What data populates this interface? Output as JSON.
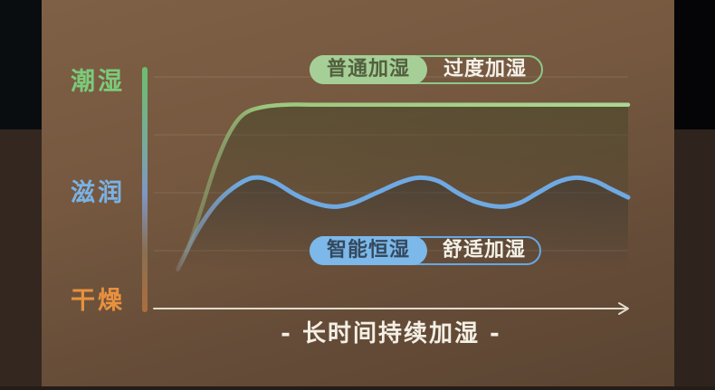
{
  "colors": {
    "bg-main-top": "#7e6046",
    "bg-main-bottom": "#5a4431",
    "edge-left-top": "#0a0d10",
    "edge-left-bottom": "#34271f",
    "edge-right-top": "#050507",
    "edge-right-bottom": "#2e231d",
    "bottom-strip": "#241c17",
    "green-line": "#a8d494",
    "blue-line": "#6fa9e2",
    "green-badge-bg": "#a6cf97",
    "green-badge-text": "#53603f",
    "green-badge-border": "#8dc989",
    "blue-badge-bg": "#7cb8e9",
    "blue-badge-text": "#35495e",
    "blue-badge-border": "#66a8e5",
    "badge-desc-text": "#f4f1e8",
    "label-wet": "#7ccb7a",
    "label-moist": "#79b2e6",
    "label-dry": "#e7913f",
    "axis-line": "#e2dacb",
    "x-label-text": "#f4efe5"
  },
  "y_axis": {
    "labels": [
      {
        "id": "wet",
        "text": "潮湿",
        "value": 100
      },
      {
        "id": "moist",
        "text": "滋润",
        "value": 50
      },
      {
        "id": "dry",
        "text": "干燥",
        "value": 0
      }
    ]
  },
  "x_axis": {
    "label": "- 长时间持续加湿 -"
  },
  "badges": {
    "normal": {
      "tag": "普通加湿",
      "desc": "过度加湿"
    },
    "smart": {
      "tag": "智能恒湿",
      "desc": "舒适加湿"
    }
  },
  "chart_data": {
    "type": "line",
    "title": "",
    "x_axis_label": "- 长时间持续加湿 -",
    "x_unit": "time, relative 0-100 (no numeric ticks shown)",
    "y_scale_semantics": {
      "干燥": 0,
      "滋润": 50,
      "潮湿": 100
    },
    "y_gridline_values": [
      25,
      50,
      75,
      100
    ],
    "ylim": [
      0,
      105
    ],
    "grid": true,
    "legend_position": "pill badges overlaid on chart",
    "series": [
      {
        "name": "普通加湿",
        "annotation": "过度加湿",
        "color": "#a8d494",
        "shape": "rises steeply then flat plateau just below 潮湿",
        "points": [
          [
            5,
            17
          ],
          [
            7,
            25
          ],
          [
            10,
            43
          ],
          [
            13,
            62
          ],
          [
            16,
            76
          ],
          [
            19,
            84
          ],
          [
            23,
            87
          ],
          [
            28,
            88
          ],
          [
            35,
            88
          ],
          [
            50,
            88
          ],
          [
            65,
            88
          ],
          [
            82,
            88
          ],
          [
            100,
            88
          ]
        ]
      },
      {
        "name": "智能恒湿",
        "annotation": "舒适加湿",
        "color": "#6fa9e2",
        "shape": "rises then oscillates gently around 滋润",
        "points": [
          [
            5,
            17
          ],
          [
            9,
            33
          ],
          [
            13,
            45
          ],
          [
            17,
            52.5
          ],
          [
            21,
            56.5
          ],
          [
            25,
            55
          ],
          [
            30,
            49
          ],
          [
            34,
            45.5
          ],
          [
            38,
            44
          ],
          [
            42,
            45.5
          ],
          [
            47,
            50
          ],
          [
            52,
            54.5
          ],
          [
            56,
            56.5
          ],
          [
            60,
            55
          ],
          [
            64,
            50
          ],
          [
            68,
            46
          ],
          [
            73,
            44
          ],
          [
            77,
            45.5
          ],
          [
            81,
            50
          ],
          [
            85,
            54.5
          ],
          [
            89,
            56.5
          ],
          [
            93,
            55
          ],
          [
            96,
            52
          ],
          [
            100,
            48
          ]
        ]
      }
    ]
  }
}
